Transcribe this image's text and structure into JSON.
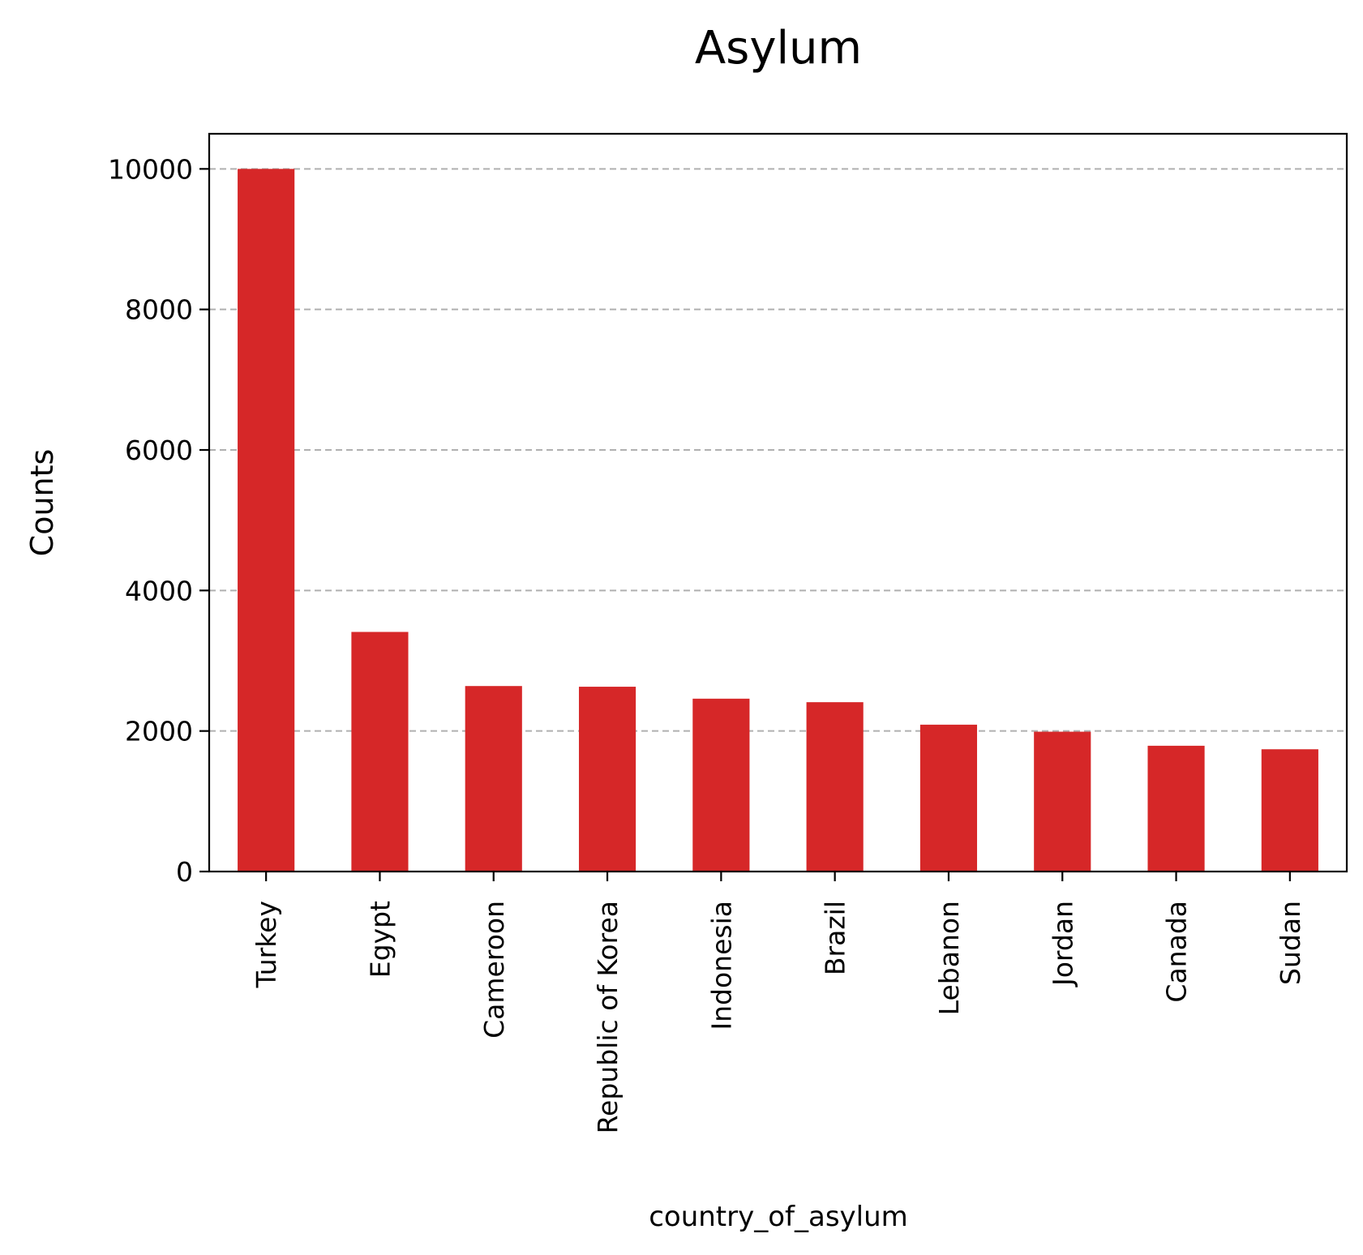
{
  "chart_data": {
    "type": "bar",
    "title": "Asylum",
    "xlabel": "country_of_asylum",
    "ylabel": "Counts",
    "categories": [
      "Turkey",
      "Egypt",
      "Cameroon",
      "Republic of Korea",
      "Indonesia",
      "Brazil",
      "Lebanon",
      "Jordan",
      "Canada",
      "Sudan"
    ],
    "values": [
      10000,
      3410,
      2640,
      2630,
      2460,
      2410,
      2090,
      1990,
      1790,
      1740
    ],
    "ylim": [
      0,
      10500
    ],
    "yticks": [
      0,
      2000,
      4000,
      6000,
      8000,
      10000
    ],
    "grid": "y-dashed",
    "bar_color": "#d62728"
  }
}
